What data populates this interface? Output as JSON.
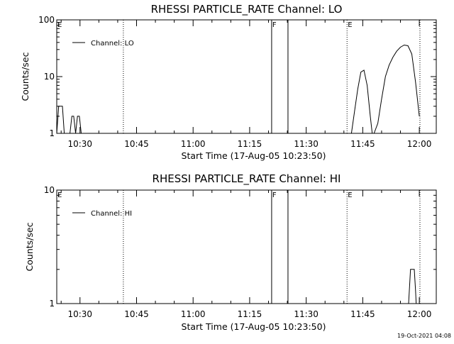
{
  "timestamp": "19-Oct-2021 04:08",
  "chart_data": [
    {
      "type": "line",
      "title": "RHESSI PARTICLE_RATE Channel: LO",
      "xlabel": "Start Time (17-Aug-05 10:23:50)",
      "ylabel": "Counts/sec",
      "yscale": "log",
      "ylim": [
        1,
        100
      ],
      "y_ticks": [
        {
          "v": 1,
          "label": "1"
        },
        {
          "v": 10,
          "label": "10"
        },
        {
          "v": 100,
          "label": "100"
        }
      ],
      "xlim": [
        "10:23:50",
        "12:04:30"
      ],
      "x_ticks": [
        "10:30",
        "10:45",
        "11:00",
        "11:15",
        "11:30",
        "11:45",
        "12:00"
      ],
      "legend": {
        "position": "top-left",
        "entries": [
          "Channel: LO"
        ]
      },
      "markers": [
        {
          "time": "10:23:50",
          "label": "E",
          "style": "none"
        },
        {
          "time": "10:41:30",
          "label": "",
          "style": "dotted"
        },
        {
          "time": "11:20:50",
          "label": "F",
          "style": "solid"
        },
        {
          "time": "11:25:10",
          "label": "",
          "style": "solid"
        },
        {
          "time": "11:40:50",
          "label": "E",
          "style": "dotted"
        },
        {
          "time": "12:00:10",
          "label": "",
          "style": "dotted"
        }
      ],
      "series": [
        {
          "segments": [
            {
              "x": [
                "10:23:50",
                "10:24:20",
                "10:24:50",
                "10:25:20",
                "10:25:50",
                "10:26:20"
              ],
              "y": [
                1,
                3,
                3,
                3,
                1,
                1
              ]
            },
            {
              "x": [
                "10:27:20",
                "10:27:50",
                "10:28:20",
                "10:28:50",
                "10:29:20",
                "10:29:50",
                "10:30:20",
                "10:30:50"
              ],
              "y": [
                1,
                2,
                2,
                1,
                2,
                2,
                1,
                1
              ]
            },
            {
              "x": [
                "11:42:00",
                "11:42:50",
                "11:43:40",
                "11:44:30",
                "11:45:20",
                "11:46:10",
                "11:47:00",
                "11:47:30"
              ],
              "y": [
                1,
                2.5,
                6,
                12,
                13,
                7,
                2,
                1
              ]
            },
            {
              "x": [
                "11:48:00",
                "11:49:00",
                "11:50:00",
                "11:51:00",
                "11:52:00",
                "11:53:00",
                "11:54:00",
                "11:55:00",
                "11:56:00",
                "11:57:00",
                "11:58:00",
                "11:59:00",
                "12:00:00"
              ],
              "y": [
                1,
                1.5,
                4,
                10,
                16,
                22,
                28,
                33,
                36,
                35,
                25,
                8,
                2
              ]
            }
          ]
        }
      ]
    },
    {
      "type": "line",
      "title": "RHESSI PARTICLE_RATE Channel: HI",
      "xlabel": "Start Time (17-Aug-05 10:23:50)",
      "ylabel": "Counts/sec",
      "yscale": "log",
      "ylim": [
        1,
        10
      ],
      "y_ticks": [
        {
          "v": 1,
          "label": "1"
        },
        {
          "v": 10,
          "label": "10"
        }
      ],
      "xlim": [
        "10:23:50",
        "12:04:30"
      ],
      "x_ticks": [
        "10:30",
        "10:45",
        "11:00",
        "11:15",
        "11:30",
        "11:45",
        "12:00"
      ],
      "legend": {
        "position": "top-left",
        "entries": [
          "Channel: HI"
        ]
      },
      "markers": [
        {
          "time": "10:23:50",
          "label": "E",
          "style": "none"
        },
        {
          "time": "10:41:30",
          "label": "",
          "style": "dotted"
        },
        {
          "time": "11:20:50",
          "label": "F",
          "style": "solid"
        },
        {
          "time": "11:25:10",
          "label": "",
          "style": "solid"
        },
        {
          "time": "11:40:50",
          "label": "E",
          "style": "dotted"
        },
        {
          "time": "12:00:10",
          "label": "",
          "style": "dotted"
        }
      ],
      "series": [
        {
          "segments": [
            {
              "x": [
                "11:57:10",
                "11:57:40",
                "11:58:40",
                "11:59:00",
                "11:59:10"
              ],
              "y": [
                1,
                2,
                2,
                1.3,
                1
              ]
            }
          ]
        }
      ]
    }
  ]
}
